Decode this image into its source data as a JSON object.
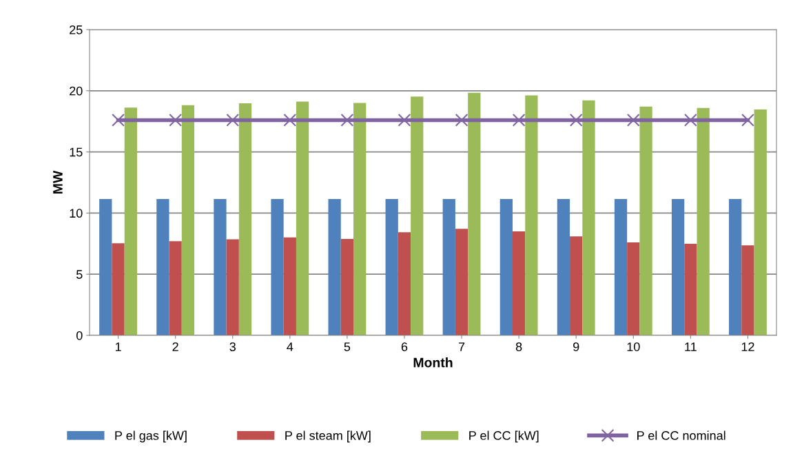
{
  "chart_data": {
    "type": "bar",
    "xlabel": "Month",
    "ylabel": "MW",
    "categories": [
      "1",
      "2",
      "3",
      "4",
      "5",
      "6",
      "7",
      "8",
      "9",
      "10",
      "11",
      "12"
    ],
    "series": [
      {
        "name": "P el gas [kW]",
        "color": "#4f81bd",
        "values": [
          11.15,
          11.15,
          11.15,
          11.15,
          11.15,
          11.15,
          11.15,
          11.15,
          11.15,
          11.15,
          11.15,
          11.15
        ]
      },
      {
        "name": "P el steam [kW]",
        "color": "#c0504d",
        "values": [
          7.53,
          7.7,
          7.85,
          8.01,
          7.88,
          8.43,
          8.72,
          8.5,
          8.09,
          7.6,
          7.49,
          7.36
        ]
      },
      {
        "name": "P el CC [kW]",
        "color": "#9bbb59",
        "values": [
          18.63,
          18.82,
          18.97,
          19.12,
          19.0,
          19.53,
          19.83,
          19.62,
          19.21,
          18.71,
          18.6,
          18.47
        ]
      },
      {
        "name": "P el CC nominal",
        "type": "line",
        "color": "#8064a2",
        "marker": "cross",
        "values": [
          17.6,
          17.6,
          17.6,
          17.6,
          17.6,
          17.6,
          17.6,
          17.6,
          17.6,
          17.6,
          17.6,
          17.6
        ]
      }
    ],
    "ylim": [
      0,
      25
    ],
    "yticks": [
      0,
      5,
      10,
      15,
      20,
      25
    ],
    "grid": "y",
    "legend": "bottom"
  }
}
